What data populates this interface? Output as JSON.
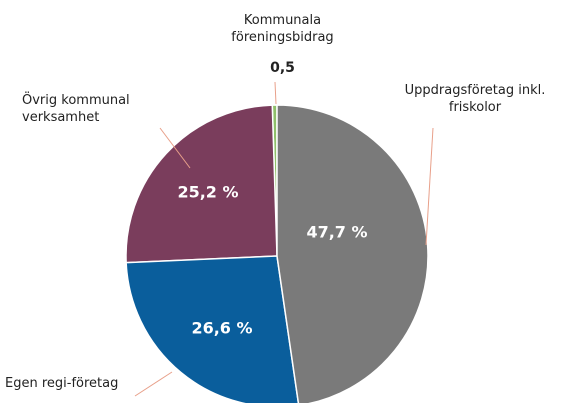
{
  "chart_data": {
    "type": "pie",
    "categories": [
      "Uppdragsföretag inkl. friskolor",
      "Egen regi-företag",
      "Övrig kommunal verksamhet",
      "Kommunala föreningsbidrag"
    ],
    "values": [
      47.7,
      26.6,
      25.2,
      0.5
    ],
    "value_labels": [
      "47,7 %",
      "26,6 %",
      "25,2 %",
      "0,5"
    ],
    "colors": [
      "#7a7a7a",
      "#0a5e9c",
      "#7a3d5c",
      "#8fc06a"
    ]
  }
}
